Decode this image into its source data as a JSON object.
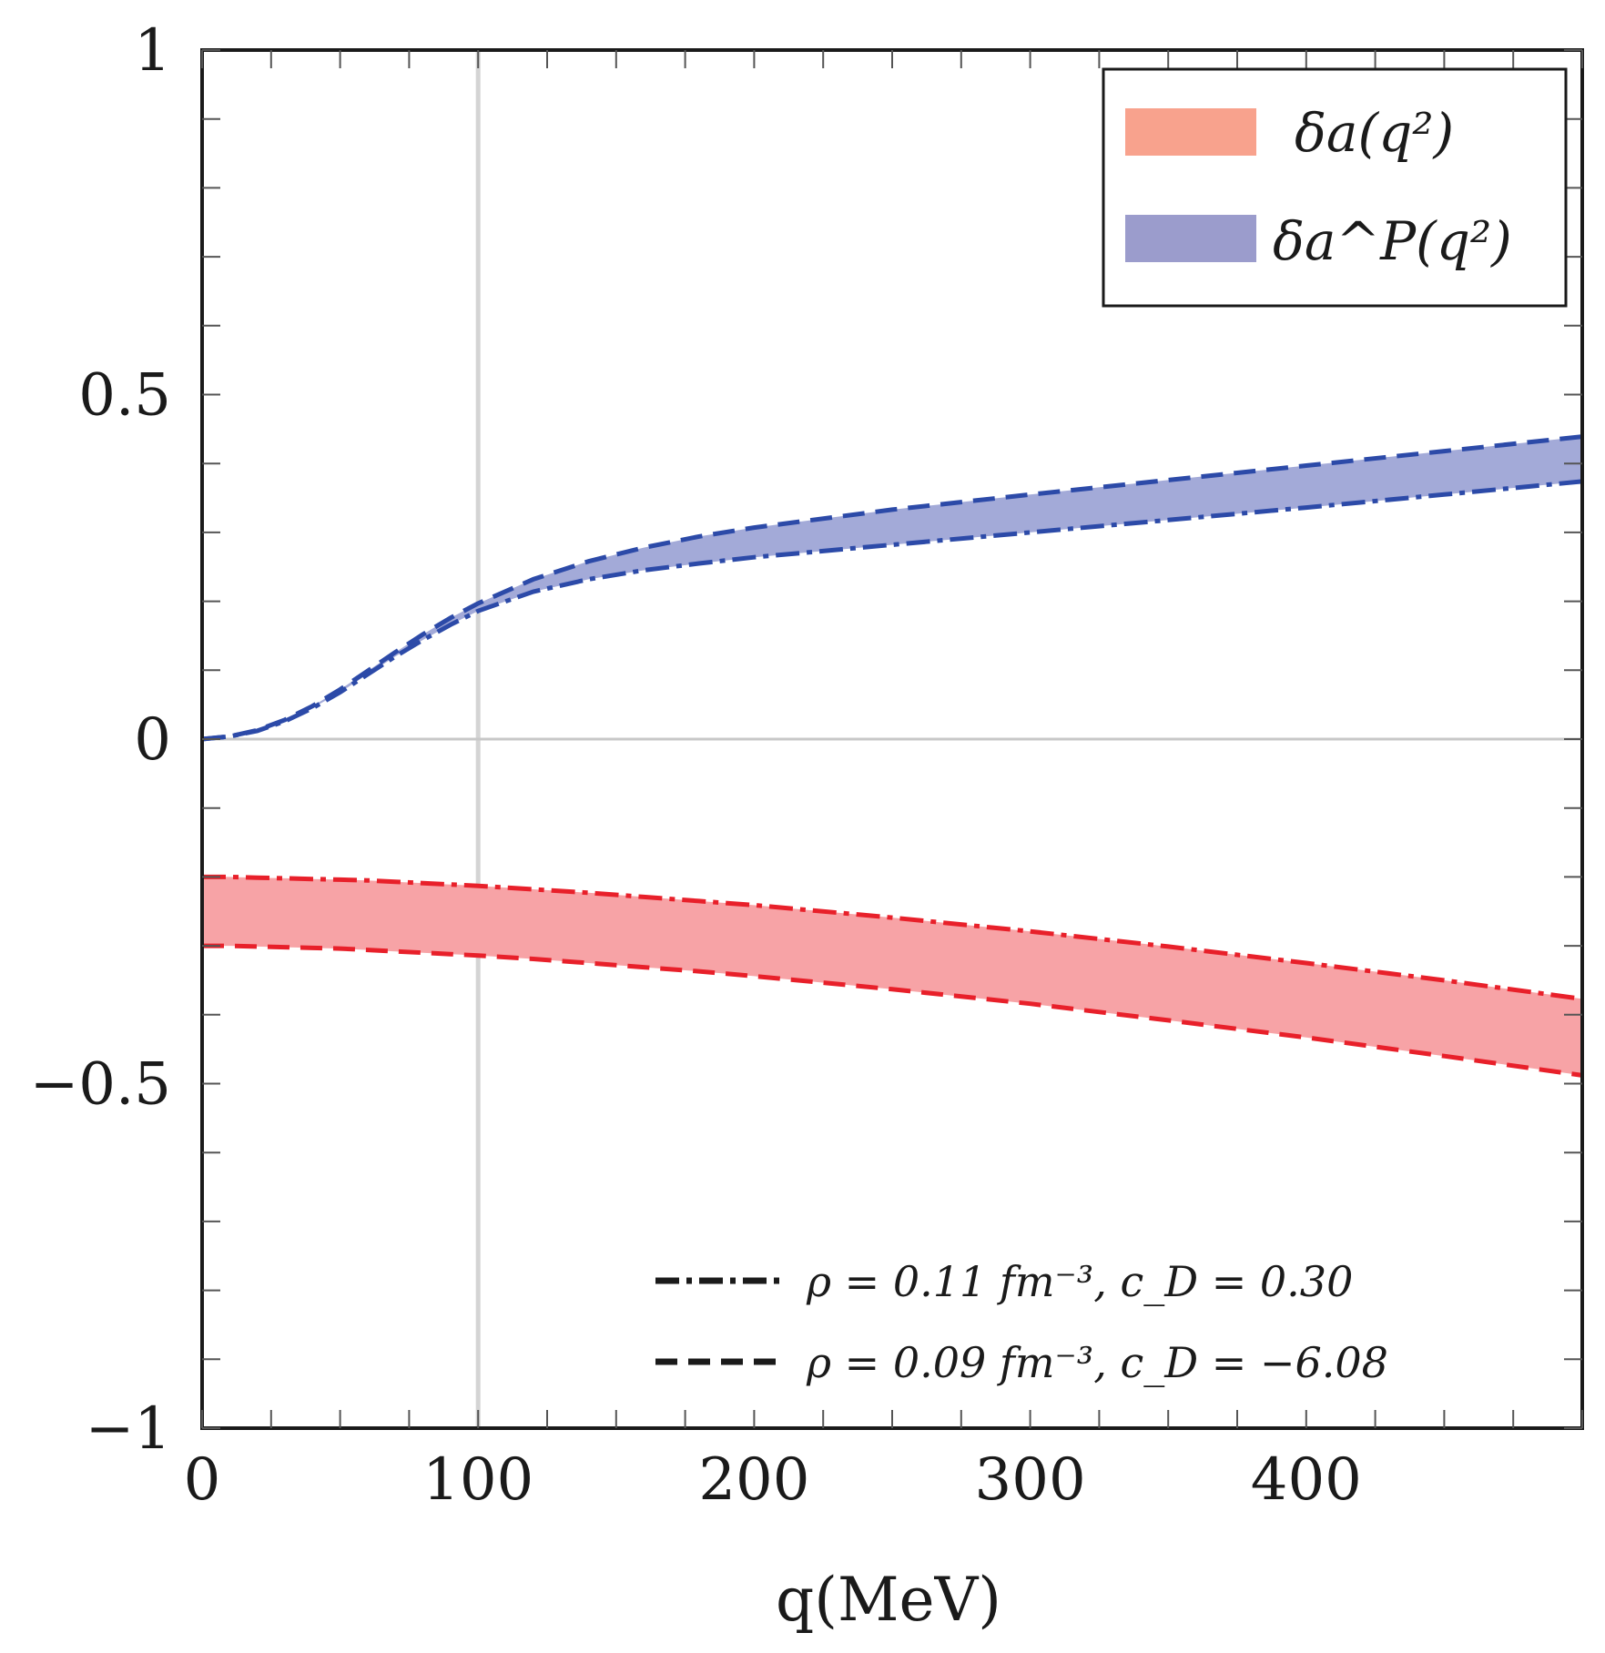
{
  "chart_data": {
    "type": "area",
    "title": "",
    "xlabel": "q(MeV)",
    "ylabel": "",
    "xlim": [
      0,
      500
    ],
    "ylim": [
      -1,
      1
    ],
    "x_ticks": [
      0,
      100,
      200,
      300,
      400
    ],
    "x_tick_labels": [
      "0",
      "100",
      "200",
      "300",
      "400"
    ],
    "y_ticks": [
      -1,
      -0.5,
      0,
      0.5,
      1
    ],
    "y_tick_labels": [
      "−1",
      "−0.5",
      "0",
      "0.5",
      "1"
    ],
    "grid": false,
    "reference_lines": {
      "vertical_x": 100,
      "horizontal_y": 0
    },
    "x": [
      0,
      10,
      20,
      30,
      40,
      50,
      60,
      70,
      80,
      90,
      100,
      120,
      140,
      160,
      180,
      200,
      250,
      300,
      350,
      400,
      450,
      500
    ],
    "bands": [
      {
        "name": "δa(q²)",
        "legend_label": "δa(q²)",
        "fill_color": "#f7a3a6",
        "legend_color": "#f8a28d",
        "line_color": "#e8202a",
        "upper": [
          -0.2,
          -0.2,
          -0.201,
          -0.202,
          -0.203,
          -0.204,
          -0.205,
          -0.207,
          -0.209,
          -0.211,
          -0.213,
          -0.218,
          -0.223,
          -0.229,
          -0.235,
          -0.241,
          -0.259,
          -0.279,
          -0.301,
          -0.325,
          -0.35,
          -0.377
        ],
        "lower": [
          -0.3,
          -0.3,
          -0.301,
          -0.302,
          -0.303,
          -0.304,
          -0.306,
          -0.308,
          -0.31,
          -0.312,
          -0.314,
          -0.319,
          -0.325,
          -0.331,
          -0.337,
          -0.344,
          -0.363,
          -0.384,
          -0.408,
          -0.433,
          -0.46,
          -0.488
        ]
      },
      {
        "name": "δa^P(q²)",
        "legend_label": "δa^P(q²)",
        "fill_color": "#a3aad8",
        "legend_color": "#9b9ccc",
        "line_color": "#2c4aa8",
        "upper": [
          0,
          0.004,
          0.013,
          0.028,
          0.048,
          0.072,
          0.099,
          0.126,
          0.152,
          0.176,
          0.197,
          0.232,
          0.258,
          0.278,
          0.294,
          0.307,
          0.333,
          0.355,
          0.376,
          0.397,
          0.418,
          0.439
        ],
        "lower": [
          0,
          0.004,
          0.012,
          0.026,
          0.045,
          0.068,
          0.094,
          0.12,
          0.144,
          0.166,
          0.186,
          0.214,
          0.232,
          0.245,
          0.255,
          0.264,
          0.282,
          0.3,
          0.318,
          0.336,
          0.355,
          0.374
        ]
      }
    ],
    "line_styles": [
      {
        "style": "dash-dot",
        "label": "ρ = 0.11 fm⁻³, c_D = 0.30",
        "curves": [
          "upper of δa(q²)",
          "lower of δa^P(q²)"
        ]
      },
      {
        "style": "dashed",
        "label": "ρ = 0.09 fm⁻³, c_D = −6.08",
        "curves": [
          "lower of δa(q²)",
          "upper of δa^P(q²)"
        ]
      }
    ],
    "legends": [
      {
        "position": "top-right",
        "entries": [
          "δa(q²)",
          "δa^P(q²)"
        ]
      },
      {
        "position": "bottom-right",
        "entries": [
          "ρ = 0.11 fm⁻³, c_D = 0.30",
          "ρ = 0.09 fm⁻³, c_D = −6.08"
        ]
      }
    ]
  }
}
